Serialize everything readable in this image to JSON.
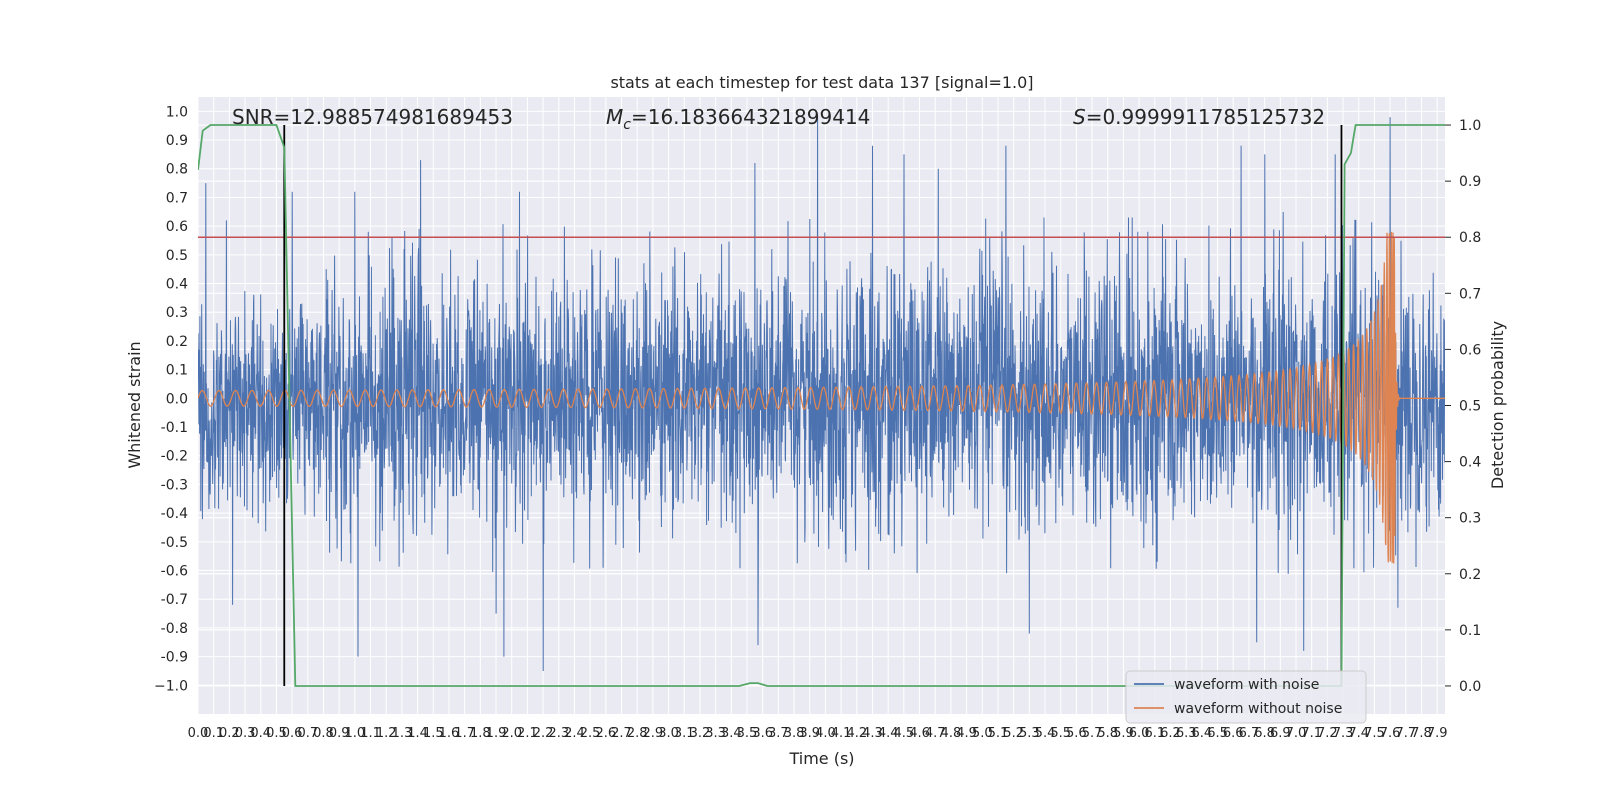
{
  "chart_data": {
    "type": "line",
    "title": "stats at each timestep for test data 137 [signal=1.0]",
    "xlabel": "Time (s)",
    "ylabel": "Whitened strain",
    "ylabel_right": "Detection probability",
    "xlim": [
      0.0,
      7.95
    ],
    "ylim": [
      -1.1,
      1.05
    ],
    "ylim_right": [
      -0.05,
      1.05
    ],
    "x_ticks": [
      "0.0",
      "0.1",
      "0.2",
      "0.3",
      "0.4",
      "0.5",
      "0.6",
      "0.7",
      "0.8",
      "0.9",
      "1.0",
      "1.1",
      "1.2",
      "1.3",
      "1.4",
      "1.5",
      "1.6",
      "1.7",
      "1.8",
      "1.9",
      "2.0",
      "2.1",
      "2.2",
      "2.3",
      "2.4",
      "2.5",
      "2.6",
      "2.7",
      "2.8",
      "2.9",
      "3.0",
      "3.1",
      "3.2",
      "3.3",
      "3.4",
      "3.5",
      "3.6",
      "3.7",
      "3.8",
      "3.9",
      "4.0",
      "4.1",
      "4.2",
      "4.3",
      "4.4",
      "4.5",
      "4.6",
      "4.7",
      "4.8",
      "4.9",
      "5.0",
      "5.1",
      "5.2",
      "5.3",
      "5.4",
      "5.5",
      "5.6",
      "5.7",
      "5.8",
      "5.9",
      "6.0",
      "6.1",
      "6.2",
      "6.3",
      "6.4",
      "6.5",
      "6.6",
      "6.7",
      "6.8",
      "6.9",
      "7.0",
      "7.1",
      "7.2",
      "7.3",
      "7.4",
      "7.5",
      "7.6",
      "7.7",
      "7.8",
      "7.9"
    ],
    "y_ticks": [
      "1.0",
      "0.9",
      "0.8",
      "0.7",
      "0.6",
      "0.5",
      "0.4",
      "0.3",
      "0.2",
      "0.1",
      "0.0",
      "-0.1",
      "-0.2",
      "-0.3",
      "-0.4",
      "-0.5",
      "-0.6",
      "-0.7",
      "-0.8",
      "-0.9",
      "−1.0"
    ],
    "y_ticks_right": [
      "1.0",
      "0.9",
      "0.8",
      "0.7",
      "0.6",
      "0.5",
      "0.4",
      "0.3",
      "0.2",
      "0.1",
      "0.0"
    ],
    "annotations": {
      "snr": "SNR=12.988574981689453",
      "mc_symbol": "M",
      "mc_sub": "c",
      "mc_value": "=16.183664321899414",
      "s_symbol": "S",
      "s_value": "=0.9999911785125732"
    },
    "threshold": {
      "value": 0.8,
      "color": "#c44e52"
    },
    "vertical_lines": [
      0.55,
      7.29
    ],
    "series": [
      {
        "name": "waveform with noise",
        "color": "#4c72b0",
        "axis": "left",
        "description": "dense whitened noise, envelope about ±0.45, spikes to ±0.95",
        "envelope": [
          [
            0.0,
            -0.47,
            0.45
          ],
          [
            0.55,
            -0.5,
            0.5
          ],
          [
            1.0,
            -0.55,
            0.55
          ],
          [
            2.0,
            -0.58,
            0.58
          ],
          [
            3.0,
            -0.55,
            0.55
          ],
          [
            4.0,
            -0.58,
            0.6
          ],
          [
            5.0,
            -0.58,
            0.6
          ],
          [
            6.0,
            -0.58,
            0.6
          ],
          [
            7.0,
            -0.6,
            0.62
          ],
          [
            7.95,
            -0.55,
            0.55
          ]
        ],
        "spikes": [
          [
            0.05,
            0.75
          ],
          [
            0.18,
            0.62
          ],
          [
            0.22,
            -0.72
          ],
          [
            0.6,
            0.72
          ],
          [
            1.0,
            0.72
          ],
          [
            1.02,
            -0.9
          ],
          [
            1.42,
            0.83
          ],
          [
            1.9,
            -0.75
          ],
          [
            1.95,
            -0.9
          ],
          [
            2.05,
            0.72
          ],
          [
            2.2,
            -0.95
          ],
          [
            3.55,
            0.82
          ],
          [
            3.57,
            -0.86
          ],
          [
            3.95,
            0.98
          ],
          [
            4.3,
            0.88
          ],
          [
            4.5,
            0.85
          ],
          [
            4.72,
            0.8
          ],
          [
            5.15,
            0.88
          ],
          [
            5.3,
            -0.82
          ],
          [
            6.65,
            0.88
          ],
          [
            6.75,
            -0.85
          ],
          [
            6.8,
            0.85
          ],
          [
            7.05,
            -0.88
          ],
          [
            7.25,
            0.85
          ],
          [
            7.6,
            0.98
          ],
          [
            7.65,
            -0.73
          ]
        ]
      },
      {
        "name": "waveform without noise",
        "color": "#dd8452",
        "axis": "left",
        "description": "chirp: amplitude grows to ~0.58 at merger near t=7.63 s then ringdown to 0",
        "chirp": {
          "t_merge": 7.63,
          "amp_start": 0.01,
          "amp_peak": 0.58,
          "f_start": 17,
          "f_end": 120
        }
      },
      {
        "name": "detection probability",
        "color": "#55a868",
        "axis": "right",
        "points": [
          [
            0.0,
            0.92
          ],
          [
            0.03,
            0.99
          ],
          [
            0.08,
            1.0
          ],
          [
            0.5,
            1.0
          ],
          [
            0.55,
            0.96
          ],
          [
            0.62,
            0.0
          ],
          [
            3.45,
            0.0
          ],
          [
            3.52,
            0.005
          ],
          [
            3.57,
            0.005
          ],
          [
            3.63,
            0.0
          ],
          [
            7.29,
            0.0
          ],
          [
            7.31,
            0.93
          ],
          [
            7.35,
            0.95
          ],
          [
            7.38,
            1.0
          ],
          [
            7.95,
            1.0
          ]
        ]
      }
    ],
    "legend": {
      "position": "lower-right",
      "entries": [
        {
          "label": "waveform with noise",
          "color": "#4c72b0"
        },
        {
          "label": "waveform without noise",
          "color": "#dd8452"
        }
      ]
    },
    "grid": true,
    "background": "#eaeaf2"
  }
}
